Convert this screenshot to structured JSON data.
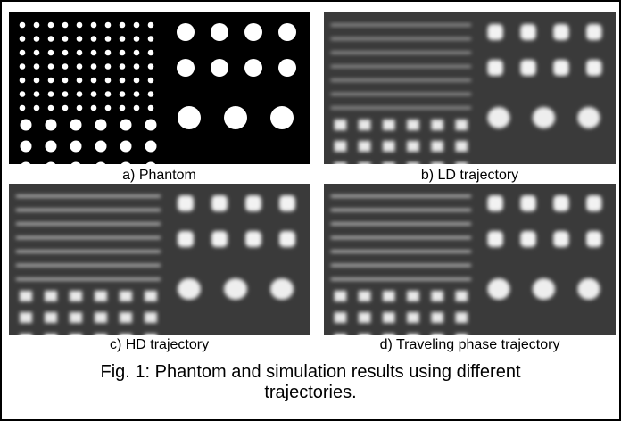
{
  "panels": [
    {
      "caption": "a) Phantom"
    },
    {
      "caption": "b) LD trajectory"
    },
    {
      "caption": "c) HD trajectory"
    },
    {
      "caption": "d) Traveling phase trajectory"
    }
  ],
  "figure_caption": "Fig. 1: Phantom and simulation results using different trajectories."
}
